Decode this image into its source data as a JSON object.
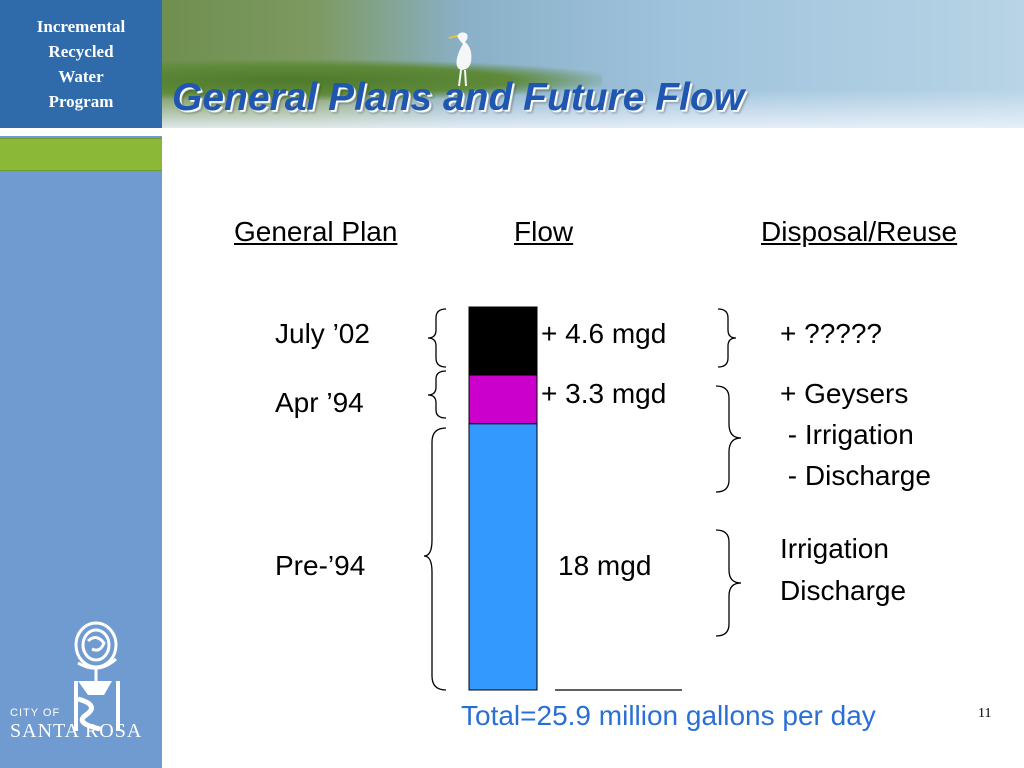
{
  "sidebar": {
    "program_title": [
      "Incremental",
      "Recycled",
      "Water",
      "Program"
    ],
    "logo": {
      "city_of": "CITY OF",
      "name": "SANTA ROSA"
    }
  },
  "slide": {
    "title": "General Plans and Future Flow",
    "page_number": "11"
  },
  "table": {
    "headers": {
      "general_plan": "General Plan",
      "flow": "Flow",
      "disposal": "Disposal/Reuse"
    },
    "rows": [
      {
        "plan": "July ’02",
        "flow": "+ 4.6 mgd",
        "disposal": [
          "+ ?????"
        ],
        "color": "#000000",
        "mgd": 4.6
      },
      {
        "plan": "Apr ’94",
        "flow": "+ 3.3 mgd",
        "disposal": [
          "+ Geysers",
          " - Irrigation",
          " - Discharge"
        ],
        "color": "#cc00cc",
        "mgd": 3.3
      },
      {
        "plan": "Pre-’94",
        "flow": "18 mgd",
        "disposal": [
          "Irrigation",
          "Discharge"
        ],
        "color": "#3399ff",
        "mgd": 18
      }
    ],
    "total": "Total=25.9 million gallons per day"
  },
  "colors": {
    "sidebar": "#6f9bd0",
    "program_box": "#2f6aaa",
    "accent_green": "#8cb838",
    "title_blue": "#1f56b0",
    "total_blue": "#2a6fd6"
  }
}
